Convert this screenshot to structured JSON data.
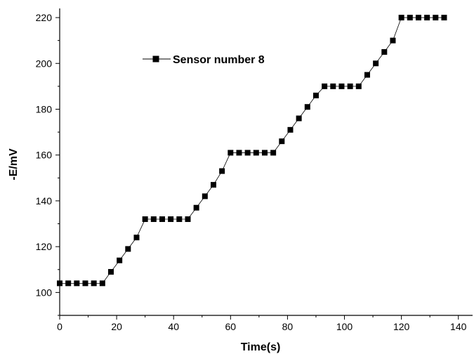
{
  "chart_data": {
    "type": "line",
    "title": "",
    "xlabel": "Time(s)",
    "ylabel": "-E/mV",
    "xlim": [
      0,
      145
    ],
    "ylim": [
      90,
      224
    ],
    "xticks": [
      0,
      20,
      40,
      60,
      80,
      100,
      120,
      140
    ],
    "yticks": [
      100,
      120,
      140,
      160,
      180,
      200,
      220
    ],
    "grid": false,
    "legend_position": "top-left",
    "line_color": "#000000",
    "marker": "square",
    "series": [
      {
        "name": "Sensor number 8",
        "x": [
          0,
          3,
          6,
          9,
          12,
          15,
          18,
          21,
          24,
          27,
          30,
          33,
          36,
          39,
          42,
          45,
          48,
          51,
          54,
          57,
          60,
          63,
          66,
          69,
          72,
          75,
          78,
          81,
          84,
          87,
          90,
          93,
          96,
          99,
          102,
          105,
          108,
          111,
          114,
          117,
          120,
          123,
          126,
          129,
          132,
          135
        ],
        "y": [
          104,
          104,
          104,
          104,
          104,
          104,
          109,
          114,
          119,
          124,
          132,
          132,
          132,
          132,
          132,
          132,
          137,
          142,
          147,
          153,
          161,
          161,
          161,
          161,
          161,
          161,
          166,
          171,
          176,
          181,
          186,
          190,
          190,
          190,
          190,
          190,
          195,
          200,
          205,
          210,
          220,
          220,
          220,
          220,
          220,
          220
        ]
      }
    ]
  }
}
